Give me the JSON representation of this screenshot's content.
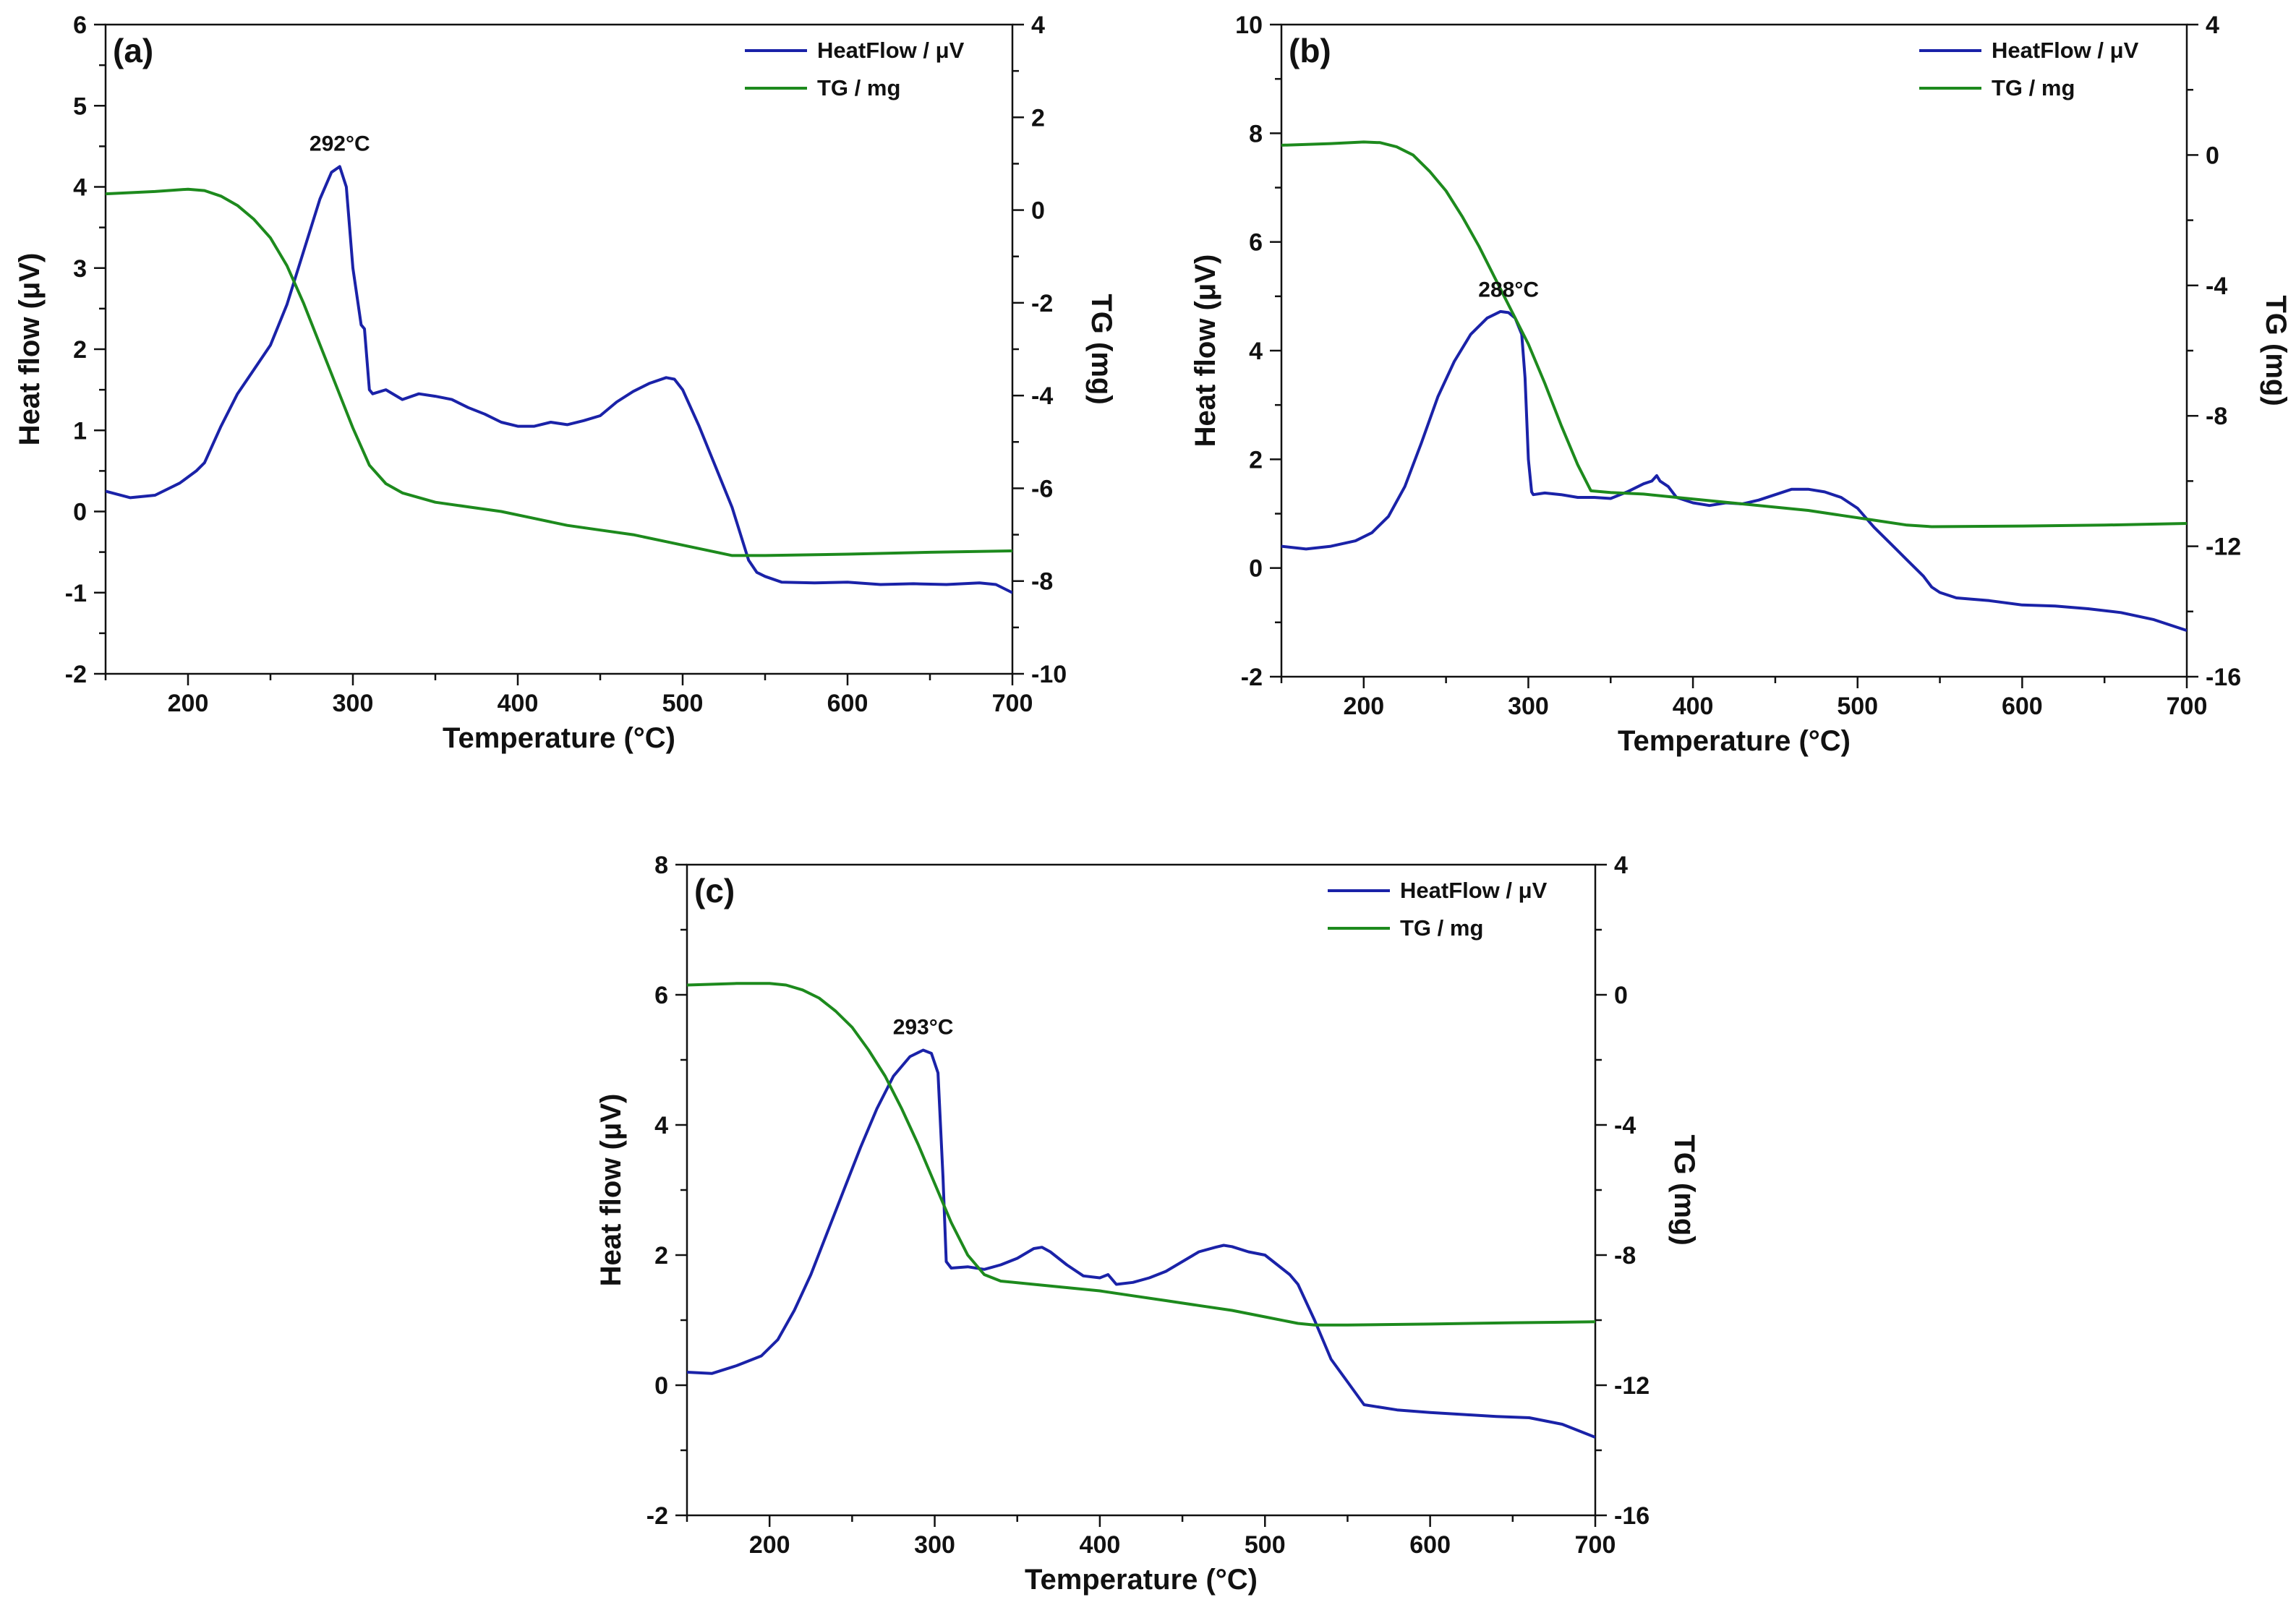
{
  "colors": {
    "heatflow": "#1a22a8",
    "tg": "#1d8a1d",
    "axis": "#111111"
  },
  "chart_data": [
    {
      "type": "line",
      "panel_label": "(a)",
      "xlabel": "Temperature (°C)",
      "ylabel": "Heat flow (μV)",
      "y2label": "TG (mg)",
      "xlim": [
        150,
        700
      ],
      "ylim": [
        -2,
        6
      ],
      "y2lim": [
        -10,
        4
      ],
      "xticks": [
        200,
        300,
        400,
        500,
        600,
        700
      ],
      "yticks": [
        -2,
        -1,
        0,
        1,
        2,
        3,
        4,
        5,
        6
      ],
      "y2ticks": [
        -10,
        -8,
        -6,
        -4,
        -2,
        0,
        2,
        4
      ],
      "legend": [
        "HeatFlow / μV",
        "TG / mg"
      ],
      "peak": {
        "text": "292°C",
        "x": 292,
        "y": 4.25
      },
      "series": [
        {
          "name": "HeatFlow / μV",
          "axis": "left",
          "x": [
            150,
            165,
            180,
            195,
            205,
            210,
            220,
            230,
            240,
            250,
            260,
            270,
            280,
            287,
            292,
            296,
            300,
            305,
            307,
            310,
            312,
            320,
            330,
            340,
            350,
            360,
            370,
            380,
            390,
            400,
            410,
            420,
            430,
            440,
            450,
            460,
            470,
            480,
            490,
            495,
            500,
            510,
            520,
            530,
            540,
            545,
            550,
            560,
            580,
            600,
            620,
            640,
            660,
            680,
            690,
            700
          ],
          "values": [
            0.25,
            0.17,
            0.2,
            0.35,
            0.5,
            0.6,
            1.05,
            1.45,
            1.75,
            2.05,
            2.55,
            3.2,
            3.85,
            4.18,
            4.25,
            4.0,
            3.0,
            2.3,
            2.25,
            1.5,
            1.45,
            1.5,
            1.38,
            1.45,
            1.42,
            1.38,
            1.28,
            1.2,
            1.1,
            1.05,
            1.05,
            1.1,
            1.07,
            1.12,
            1.18,
            1.35,
            1.48,
            1.58,
            1.65,
            1.63,
            1.5,
            1.05,
            0.55,
            0.05,
            -0.6,
            -0.75,
            -0.8,
            -0.87,
            -0.88,
            -0.87,
            -0.9,
            -0.89,
            -0.9,
            -0.88,
            -0.9,
            -1.0
          ]
        },
        {
          "name": "TG / mg",
          "axis": "right",
          "x": [
            150,
            180,
            200,
            210,
            220,
            230,
            240,
            250,
            260,
            270,
            280,
            290,
            300,
            310,
            320,
            330,
            350,
            370,
            390,
            410,
            430,
            450,
            470,
            490,
            510,
            530,
            550,
            600,
            650,
            700
          ],
          "values": [
            0.35,
            0.4,
            0.45,
            0.42,
            0.3,
            0.1,
            -0.2,
            -0.6,
            -1.2,
            -2.0,
            -2.9,
            -3.8,
            -4.7,
            -5.5,
            -5.9,
            -6.1,
            -6.3,
            -6.4,
            -6.5,
            -6.65,
            -6.8,
            -6.9,
            -7.0,
            -7.15,
            -7.3,
            -7.45,
            -7.45,
            -7.42,
            -7.38,
            -7.35
          ]
        }
      ]
    },
    {
      "type": "line",
      "panel_label": "(b)",
      "xlabel": "Temperature (°C)",
      "ylabel": "Heat flow (μV)",
      "y2label": "TG (mg)",
      "xlim": [
        150,
        700
      ],
      "ylim": [
        -2,
        10
      ],
      "y2lim": [
        -16,
        4
      ],
      "xticks": [
        200,
        300,
        400,
        500,
        600,
        700
      ],
      "yticks": [
        -2,
        0,
        2,
        4,
        6,
        8,
        10
      ],
      "y2ticks": [
        -16,
        -12,
        -8,
        -4,
        0,
        4
      ],
      "legend": [
        "HeatFlow / μV",
        "TG / mg"
      ],
      "peak": {
        "text": "288°C",
        "x": 288,
        "y": 4.7
      },
      "series": [
        {
          "name": "HeatFlow / μV",
          "axis": "left",
          "x": [
            150,
            165,
            180,
            195,
            205,
            215,
            225,
            235,
            245,
            255,
            265,
            275,
            283,
            288,
            292,
            296,
            298,
            300,
            302,
            303,
            310,
            320,
            330,
            340,
            350,
            360,
            370,
            375,
            378,
            380,
            385,
            390,
            400,
            410,
            420,
            430,
            440,
            450,
            460,
            470,
            480,
            490,
            500,
            510,
            520,
            530,
            540,
            545,
            550,
            560,
            580,
            600,
            620,
            640,
            660,
            680,
            700
          ],
          "values": [
            0.4,
            0.35,
            0.4,
            0.5,
            0.65,
            0.95,
            1.5,
            2.3,
            3.15,
            3.8,
            4.3,
            4.6,
            4.72,
            4.7,
            4.6,
            4.3,
            3.5,
            2.0,
            1.4,
            1.35,
            1.38,
            1.35,
            1.3,
            1.3,
            1.28,
            1.4,
            1.55,
            1.6,
            1.7,
            1.6,
            1.5,
            1.3,
            1.2,
            1.15,
            1.2,
            1.18,
            1.25,
            1.35,
            1.45,
            1.45,
            1.4,
            1.3,
            1.1,
            0.75,
            0.45,
            0.15,
            -0.15,
            -0.35,
            -0.45,
            -0.55,
            -0.6,
            -0.68,
            -0.7,
            -0.75,
            -0.82,
            -0.95,
            -1.15
          ]
        },
        {
          "name": "TG / mg",
          "axis": "right",
          "x": [
            150,
            180,
            200,
            210,
            220,
            230,
            240,
            250,
            260,
            270,
            280,
            290,
            300,
            310,
            320,
            330,
            338,
            350,
            370,
            390,
            410,
            430,
            450,
            470,
            490,
            510,
            530,
            545,
            600,
            650,
            700
          ],
          "values": [
            0.3,
            0.35,
            0.4,
            0.38,
            0.25,
            0.0,
            -0.5,
            -1.1,
            -1.9,
            -2.8,
            -3.8,
            -4.8,
            -5.8,
            -7.0,
            -8.3,
            -9.5,
            -10.3,
            -10.35,
            -10.4,
            -10.5,
            -10.6,
            -10.7,
            -10.8,
            -10.9,
            -11.05,
            -11.2,
            -11.35,
            -11.4,
            -11.38,
            -11.35,
            -11.3
          ]
        }
      ]
    },
    {
      "type": "line",
      "panel_label": "(c)",
      "xlabel": "Temperature (°C)",
      "ylabel": "Heat flow (μV)",
      "y2label": "TG (mg)",
      "xlim": [
        150,
        700
      ],
      "ylim": [
        -2,
        8
      ],
      "y2lim": [
        -16,
        4
      ],
      "xticks": [
        200,
        300,
        400,
        500,
        600,
        700
      ],
      "yticks": [
        -2,
        0,
        2,
        4,
        6,
        8
      ],
      "y2ticks": [
        -16,
        -12,
        -8,
        -4,
        0,
        4
      ],
      "legend": [
        "HeatFlow / μV",
        "TG / mg"
      ],
      "peak": {
        "text": "293°C",
        "x": 293,
        "y": 5.15
      },
      "series": [
        {
          "name": "HeatFlow / μV",
          "axis": "left",
          "x": [
            150,
            165,
            180,
            195,
            205,
            215,
            225,
            235,
            245,
            255,
            265,
            275,
            285,
            293,
            298,
            302,
            305,
            307,
            310,
            320,
            330,
            340,
            350,
            360,
            365,
            370,
            380,
            390,
            400,
            405,
            410,
            420,
            430,
            440,
            450,
            460,
            470,
            475,
            480,
            490,
            500,
            510,
            515,
            520,
            530,
            540,
            550,
            560,
            580,
            600,
            620,
            640,
            660,
            680,
            700
          ],
          "values": [
            0.2,
            0.18,
            0.3,
            0.45,
            0.7,
            1.15,
            1.7,
            2.35,
            3.0,
            3.65,
            4.25,
            4.75,
            5.05,
            5.15,
            5.1,
            4.8,
            3.2,
            1.9,
            1.8,
            1.82,
            1.78,
            1.85,
            1.95,
            2.1,
            2.12,
            2.05,
            1.85,
            1.68,
            1.65,
            1.7,
            1.55,
            1.58,
            1.65,
            1.75,
            1.9,
            2.05,
            2.12,
            2.15,
            2.13,
            2.05,
            2.0,
            1.8,
            1.7,
            1.55,
            1.0,
            0.4,
            0.05,
            -0.3,
            -0.38,
            -0.42,
            -0.45,
            -0.48,
            -0.5,
            -0.6,
            -0.8
          ]
        },
        {
          "name": "TG / mg",
          "axis": "right",
          "x": [
            150,
            180,
            200,
            210,
            220,
            230,
            240,
            250,
            260,
            270,
            280,
            290,
            300,
            310,
            320,
            330,
            340,
            360,
            380,
            400,
            420,
            440,
            460,
            480,
            500,
            520,
            530,
            550,
            600,
            650,
            700
          ],
          "values": [
            0.3,
            0.35,
            0.35,
            0.3,
            0.15,
            -0.1,
            -0.5,
            -1.0,
            -1.7,
            -2.5,
            -3.5,
            -4.6,
            -5.8,
            -7.0,
            -8.0,
            -8.6,
            -8.8,
            -8.9,
            -9.0,
            -9.1,
            -9.25,
            -9.4,
            -9.55,
            -9.7,
            -9.9,
            -10.1,
            -10.15,
            -10.15,
            -10.12,
            -10.08,
            -10.05
          ]
        }
      ]
    }
  ]
}
